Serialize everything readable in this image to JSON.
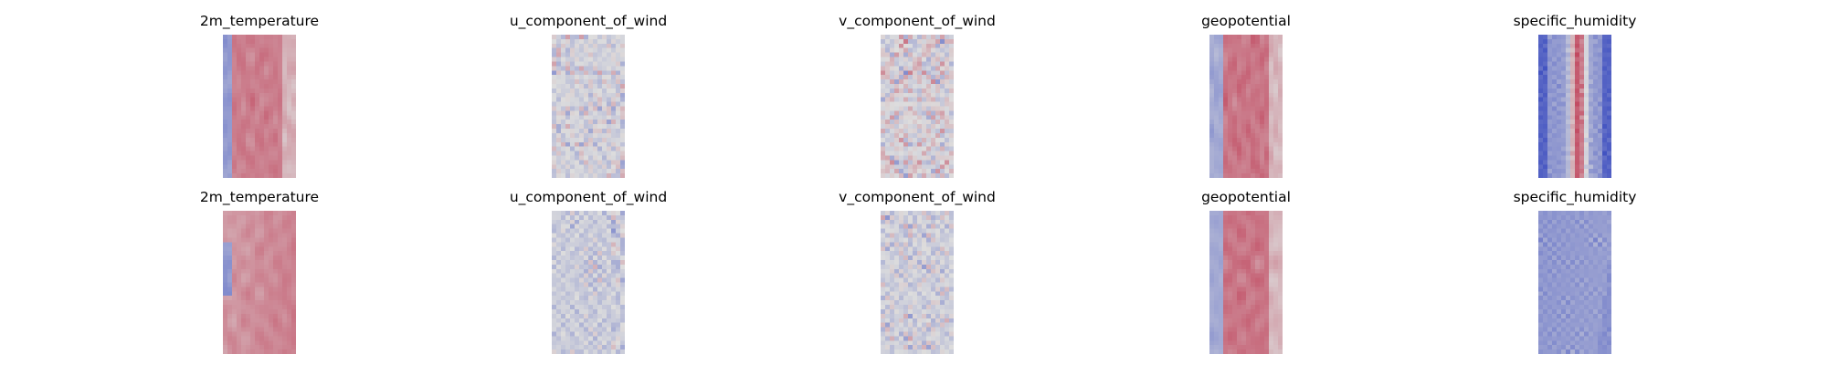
{
  "chart_data": {
    "type": "heatmap",
    "layout": {
      "rows": 2,
      "cols": 5
    },
    "colormap": {
      "name": "coolwarm",
      "low": "#3b4cc0",
      "mid": "#dddddd",
      "high": "#b40426"
    },
    "axes_visible": false,
    "panels": [
      {
        "title": "2m_temperature",
        "pattern": "temperature",
        "seed": 11
      },
      {
        "title": "u_component_of_wind",
        "pattern": "wind_u",
        "seed": 23
      },
      {
        "title": "v_component_of_wind",
        "pattern": "wind_v",
        "seed": 37
      },
      {
        "title": "geopotential",
        "pattern": "geopotential",
        "seed": 41
      },
      {
        "title": "specific_humidity",
        "pattern": "humidity",
        "seed": 53
      },
      {
        "title": "2m_temperature",
        "pattern": "temperature_noisy",
        "seed": 67
      },
      {
        "title": "u_component_of_wind",
        "pattern": "wind_u_faint",
        "seed": 71
      },
      {
        "title": "v_component_of_wind",
        "pattern": "wind_v_faint",
        "seed": 83
      },
      {
        "title": "geopotential",
        "pattern": "geopotential",
        "seed": 97
      },
      {
        "title": "specific_humidity",
        "pattern": "humidity_faint",
        "seed": 101
      }
    ]
  }
}
